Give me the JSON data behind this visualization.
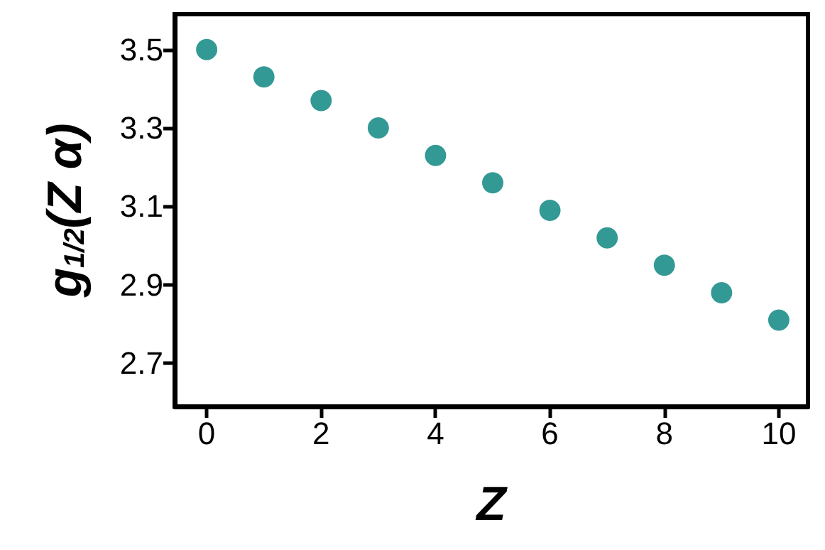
{
  "chart_data": {
    "type": "scatter",
    "xlabel": "Z",
    "ylabel": "g$_{1/2}$(Z α)",
    "x": [
      0,
      1,
      2,
      3,
      4,
      5,
      6,
      7,
      8,
      9,
      10
    ],
    "series": [
      {
        "color": "#00807a",
        "values": [
          3.5,
          3.43,
          3.37,
          3.3,
          3.23,
          3.16,
          3.09,
          3.02,
          2.95,
          2.88,
          2.81
        ]
      }
    ],
    "xlim": [
      -0.56,
      10.51
    ],
    "ylim": [
      2.59,
      3.59
    ],
    "xticks": [
      0,
      2,
      4,
      6,
      8,
      10
    ],
    "yticks": [
      2.7,
      2.9,
      3.1,
      3.3,
      3.5
    ],
    "grid": false,
    "marker": "circle"
  }
}
